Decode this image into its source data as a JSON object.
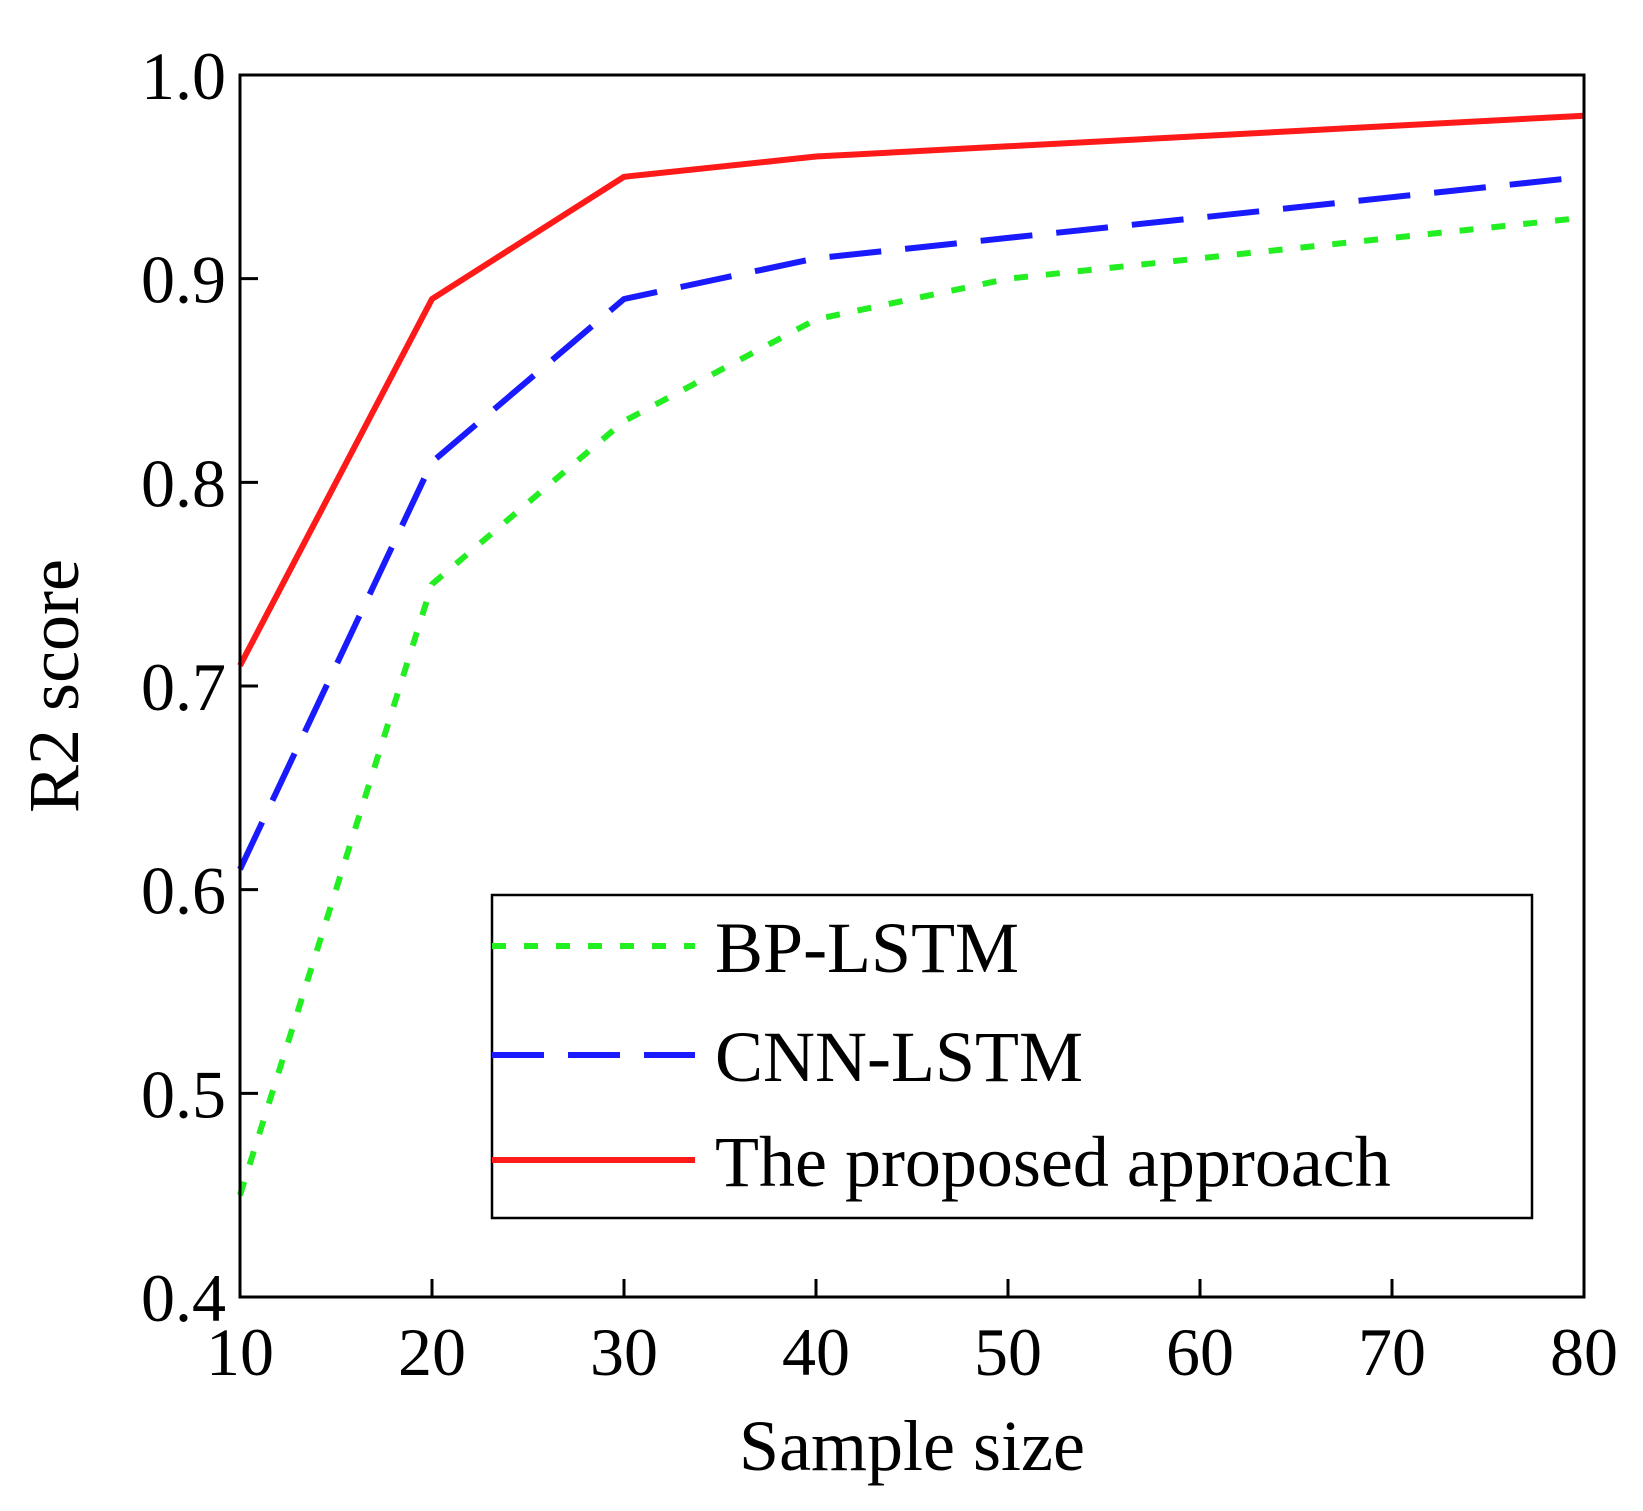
{
  "chart_data": {
    "type": "line",
    "title": "",
    "xlabel": "Sample size",
    "ylabel": "R2 score",
    "xlim": [
      10,
      80
    ],
    "ylim": [
      0.4,
      1.0
    ],
    "xticks": [
      10,
      20,
      30,
      40,
      50,
      60,
      70,
      80
    ],
    "xtick_labels": [
      "10",
      "20",
      "30",
      "40",
      "50",
      "60",
      "70",
      "80"
    ],
    "yticks": [
      0.4,
      0.5,
      0.6,
      0.7,
      0.8,
      0.9,
      1.0
    ],
    "ytick_labels": [
      "0.4",
      "0.5",
      "0.6",
      "0.7",
      "0.8",
      "0.9",
      "1.0"
    ],
    "grid": false,
    "legend_position": "lower-right",
    "x": [
      10,
      20,
      30,
      40,
      50,
      60,
      70,
      80
    ],
    "series": [
      {
        "name": "BP-LSTM",
        "style": "dotted",
        "color": "#22ee22",
        "values": [
          0.45,
          0.75,
          0.83,
          0.88,
          0.9,
          0.91,
          0.92,
          0.93
        ]
      },
      {
        "name": "CNN-LSTM",
        "style": "dashed",
        "color": "#1a1aff",
        "values": [
          0.61,
          0.81,
          0.89,
          0.91,
          0.92,
          0.93,
          0.94,
          0.95
        ]
      },
      {
        "name": "The proposed approach",
        "style": "solid",
        "color": "#ff1a1a",
        "values": [
          0.71,
          0.89,
          0.95,
          0.96,
          0.965,
          0.97,
          0.975,
          0.98
        ]
      }
    ]
  }
}
